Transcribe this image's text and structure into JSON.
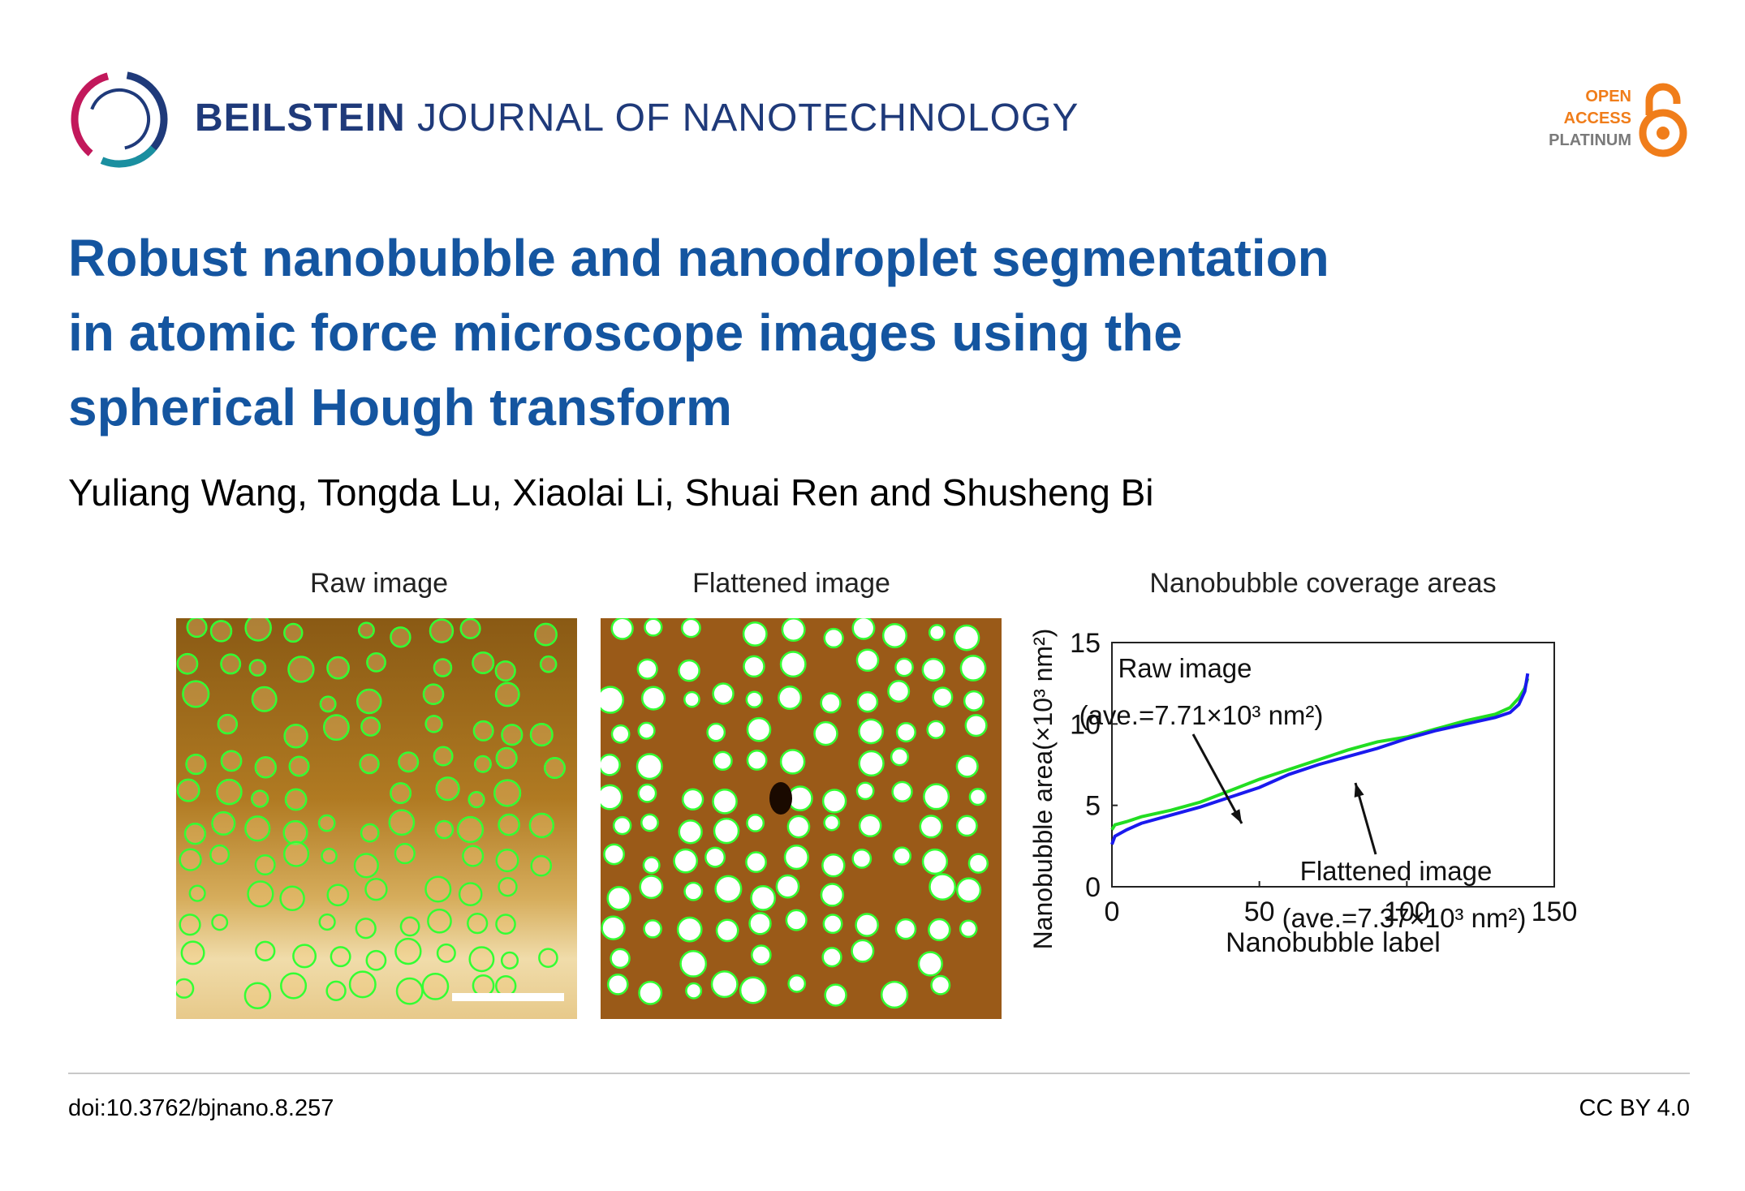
{
  "header": {
    "journal_bold": "BEILSTEIN",
    "journal_rest": "JOURNAL OF NANOTECHNOLOGY",
    "badge": {
      "line1": "OPEN",
      "line2": "ACCESS",
      "line3": "PLATINUM",
      "accent": "#f07d1a",
      "grey": "#7a7a7a"
    }
  },
  "article": {
    "title_line1": "Robust nanobubble and nanodroplet segmentation",
    "title_line2": "in atomic force microscope images using the",
    "title_line3": "spherical Hough transform",
    "authors": "Yuliang Wang, Tongda Lu, Xiaolai Li, Shuai Ren and Shusheng Bi"
  },
  "figure": {
    "panel1_title": "Raw image",
    "panel2_title": "Flattened image",
    "panel3_title": "Nanobubble coverage areas"
  },
  "chart_data": {
    "type": "line",
    "title": "Nanobubble coverage areas",
    "xlabel": "Nanobubble label",
    "ylabel": "Nanobubble area(×10³ nm²)",
    "xlim": [
      0,
      150
    ],
    "ylim": [
      0,
      15
    ],
    "xticks": [
      0,
      50,
      100,
      150
    ],
    "yticks": [
      0,
      5,
      10,
      15
    ],
    "series": [
      {
        "name": "Raw image",
        "color": "#22dd22",
        "x": [
          0,
          1,
          5,
          10,
          20,
          30,
          40,
          50,
          60,
          70,
          80,
          90,
          100,
          110,
          120,
          130,
          135,
          138,
          140,
          141
        ],
        "y": [
          3.5,
          3.8,
          4.0,
          4.3,
          4.7,
          5.2,
          5.9,
          6.6,
          7.2,
          7.8,
          8.4,
          8.9,
          9.2,
          9.7,
          10.2,
          10.6,
          11.0,
          11.6,
          12.2,
          12.8
        ]
      },
      {
        "name": "Flattened image",
        "color": "#1a1aee",
        "x": [
          0,
          1,
          5,
          10,
          20,
          30,
          40,
          50,
          60,
          70,
          80,
          90,
          100,
          110,
          120,
          130,
          135,
          138,
          140,
          141
        ],
        "y": [
          2.6,
          3.1,
          3.5,
          3.9,
          4.4,
          4.9,
          5.5,
          6.1,
          6.9,
          7.5,
          8.0,
          8.5,
          9.1,
          9.6,
          10.0,
          10.4,
          10.7,
          11.2,
          12.0,
          13.1
        ]
      }
    ],
    "annotations": [
      {
        "label": "Raw image",
        "sublabel": "(ave.=7.71×10³ nm²)"
      },
      {
        "label": "Flattened image",
        "sublabel": "(ave.=7.37×10³ nm²)"
      }
    ]
  },
  "footer": {
    "doi": "doi:10.3762/bjnano.8.257",
    "license": "CC BY 4.0"
  }
}
